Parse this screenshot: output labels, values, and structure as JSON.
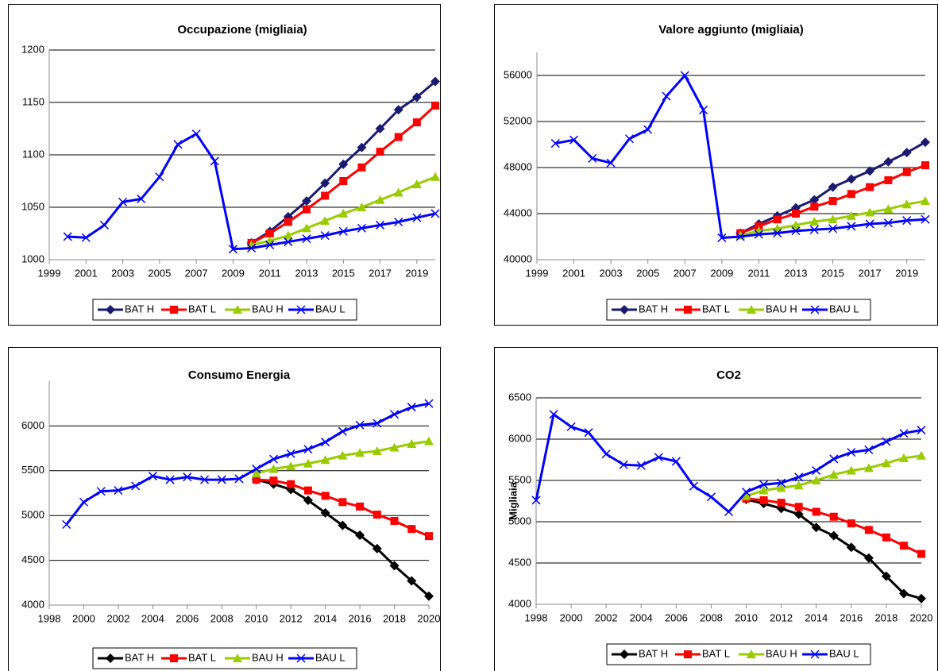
{
  "chart_data": [
    {
      "type": "line",
      "title": "Occupazione (migliaia)",
      "x": [
        2000,
        2001,
        2002,
        2003,
        2004,
        2005,
        2006,
        2007,
        2008,
        2009,
        2010,
        2011,
        2012,
        2013,
        2014,
        2015,
        2016,
        2017,
        2018,
        2019,
        2020
      ],
      "xlim": [
        1999,
        2020
      ],
      "xticks": [
        1999,
        2001,
        2003,
        2005,
        2007,
        2009,
        2011,
        2013,
        2015,
        2017,
        2019
      ],
      "ylim": [
        1000,
        1200
      ],
      "yticks": [
        1000,
        1050,
        1100,
        1150,
        1200
      ],
      "grid": true,
      "legend": "bottom",
      "series": [
        {
          "name": "BAT H",
          "color": "#1a1a70",
          "marker": "diamond",
          "values": [
            null,
            null,
            null,
            null,
            null,
            null,
            null,
            null,
            null,
            null,
            1016,
            1027,
            1041,
            1056,
            1073,
            1091,
            1107,
            1125,
            1143,
            1155,
            1170
          ]
        },
        {
          "name": "BAT L",
          "color": "#ff0000",
          "marker": "square",
          "values": [
            null,
            null,
            null,
            null,
            null,
            null,
            null,
            null,
            null,
            null,
            1016,
            1025,
            1036,
            1048,
            1061,
            1075,
            1088,
            1103,
            1117,
            1131,
            1147
          ]
        },
        {
          "name": "BAU H",
          "color": "#99cc00",
          "marker": "triangle",
          "values": [
            null,
            null,
            null,
            null,
            null,
            null,
            null,
            null,
            null,
            null,
            1014,
            1018,
            1023,
            1030,
            1037,
            1044,
            1050,
            1057,
            1064,
            1072,
            1079
          ]
        },
        {
          "name": "BAU L",
          "color": "#0000ff",
          "marker": "x",
          "values": [
            1022,
            1021,
            1033,
            1055,
            1058,
            1079,
            1110,
            1120,
            1094,
            1010,
            1011,
            1014,
            1017,
            1020,
            1023,
            1027,
            1030,
            1033,
            1036,
            1040,
            1044
          ]
        }
      ]
    },
    {
      "type": "line",
      "title": "Valore aggiunto (migliaia)",
      "x": [
        2000,
        2001,
        2002,
        2003,
        2004,
        2005,
        2006,
        2007,
        2008,
        2009,
        2010,
        2011,
        2012,
        2013,
        2014,
        2015,
        2016,
        2017,
        2018,
        2019,
        2020
      ],
      "xlim": [
        1999,
        2020
      ],
      "xticks": [
        1999,
        2001,
        2003,
        2005,
        2007,
        2009,
        2011,
        2013,
        2015,
        2017,
        2019
      ],
      "ylim": [
        40000,
        58000
      ],
      "yticks": [
        40000,
        44000,
        48000,
        52000,
        56000
      ],
      "grid": true,
      "legend": "bottom",
      "series": [
        {
          "name": "BAT H",
          "color": "#1a1a70",
          "marker": "diamond",
          "values": [
            null,
            null,
            null,
            null,
            null,
            null,
            null,
            null,
            null,
            null,
            42300,
            43100,
            43800,
            44500,
            45200,
            46300,
            47000,
            47700,
            48500,
            49300,
            50200
          ]
        },
        {
          "name": "BAT L",
          "color": "#ff0000",
          "marker": "square",
          "values": [
            null,
            null,
            null,
            null,
            null,
            null,
            null,
            null,
            null,
            null,
            42300,
            42900,
            43500,
            44000,
            44600,
            45100,
            45700,
            46300,
            46900,
            47600,
            48200
          ]
        },
        {
          "name": "BAU H",
          "color": "#99cc00",
          "marker": "triangle",
          "values": [
            null,
            null,
            null,
            null,
            null,
            null,
            null,
            null,
            null,
            null,
            42100,
            42500,
            42700,
            43000,
            43300,
            43500,
            43800,
            44100,
            44400,
            44800,
            45100
          ]
        },
        {
          "name": "BAU L",
          "color": "#0000ff",
          "marker": "x",
          "values": [
            50100,
            50400,
            48800,
            48400,
            50500,
            51300,
            54200,
            56000,
            53000,
            41900,
            42000,
            42200,
            42300,
            42500,
            42600,
            42700,
            42900,
            43100,
            43200,
            43400,
            43500
          ]
        }
      ]
    },
    {
      "type": "line",
      "title": "Consumo Energia",
      "x": [
        1999,
        2000,
        2001,
        2002,
        2003,
        2004,
        2005,
        2006,
        2007,
        2008,
        2009,
        2010,
        2011,
        2012,
        2013,
        2014,
        2015,
        2016,
        2017,
        2018,
        2019,
        2020
      ],
      "xlim": [
        1998,
        2020
      ],
      "xticks": [
        1998,
        2000,
        2002,
        2004,
        2006,
        2008,
        2010,
        2012,
        2014,
        2016,
        2018,
        2020
      ],
      "ylim": [
        4000,
        6500
      ],
      "yticks": [
        4000,
        4500,
        5000,
        5500,
        6000
      ],
      "grid": true,
      "legend": "bottom",
      "series": [
        {
          "name": "BAT H",
          "color": "#000000",
          "marker": "diamond",
          "values": [
            null,
            null,
            null,
            null,
            null,
            null,
            null,
            null,
            null,
            null,
            null,
            5400,
            5350,
            5290,
            5170,
            5030,
            4890,
            4780,
            4630,
            4440,
            4270,
            4100
          ]
        },
        {
          "name": "BAT L",
          "color": "#ff0000",
          "marker": "square",
          "values": [
            null,
            null,
            null,
            null,
            null,
            null,
            null,
            null,
            null,
            null,
            null,
            5400,
            5390,
            5350,
            5280,
            5220,
            5150,
            5100,
            5010,
            4940,
            4850,
            4770
          ]
        },
        {
          "name": "BAU H",
          "color": "#99cc00",
          "marker": "triangle",
          "values": [
            null,
            null,
            null,
            null,
            null,
            null,
            null,
            null,
            null,
            null,
            null,
            5470,
            5520,
            5550,
            5580,
            5620,
            5670,
            5700,
            5720,
            5760,
            5800,
            5830
          ]
        },
        {
          "name": "BAU L",
          "color": "#0000ff",
          "marker": "x",
          "values": [
            4900,
            5150,
            5270,
            5280,
            5330,
            5440,
            5400,
            5430,
            5400,
            5400,
            5410,
            5520,
            5630,
            5690,
            5740,
            5820,
            5940,
            6010,
            6030,
            6130,
            6210,
            6250
          ]
        }
      ]
    },
    {
      "type": "line",
      "title": "CO2",
      "y_label": "Migliaia",
      "x": [
        1998,
        1999,
        2000,
        2001,
        2002,
        2003,
        2004,
        2005,
        2006,
        2007,
        2008,
        2009,
        2010,
        2011,
        2012,
        2013,
        2014,
        2015,
        2016,
        2017,
        2018,
        2019,
        2020
      ],
      "xlim": [
        1998,
        2020
      ],
      "xticks": [
        1998,
        2000,
        2002,
        2004,
        2006,
        2008,
        2010,
        2012,
        2014,
        2016,
        2018,
        2020
      ],
      "ylim": [
        4000,
        6500
      ],
      "yticks": [
        4000,
        4500,
        5000,
        5500,
        6000,
        6500
      ],
      "grid": true,
      "legend": "bottom",
      "series": [
        {
          "name": "BAT H",
          "color": "#000000",
          "marker": "diamond",
          "values": [
            null,
            null,
            null,
            null,
            null,
            null,
            null,
            null,
            null,
            null,
            null,
            null,
            5270,
            5220,
            5160,
            5090,
            4930,
            4830,
            4690,
            4560,
            4340,
            4130,
            4070
          ]
        },
        {
          "name": "BAT L",
          "color": "#ff0000",
          "marker": "square",
          "values": [
            null,
            null,
            null,
            null,
            null,
            null,
            null,
            null,
            null,
            null,
            null,
            null,
            5280,
            5260,
            5230,
            5180,
            5120,
            5060,
            4980,
            4900,
            4810,
            4710,
            4610
          ]
        },
        {
          "name": "BAU H",
          "color": "#99cc00",
          "marker": "triangle",
          "values": [
            null,
            null,
            null,
            null,
            null,
            null,
            null,
            null,
            null,
            null,
            null,
            null,
            5310,
            5380,
            5410,
            5440,
            5500,
            5570,
            5620,
            5650,
            5710,
            5770,
            5800
          ]
        },
        {
          "name": "BAU L",
          "color": "#0000ff",
          "marker": "x",
          "values": [
            5260,
            6300,
            6150,
            6080,
            5820,
            5690,
            5680,
            5780,
            5730,
            5430,
            5300,
            5120,
            5360,
            5450,
            5470,
            5540,
            5620,
            5760,
            5840,
            5870,
            5970,
            6070,
            6110
          ]
        }
      ]
    }
  ]
}
